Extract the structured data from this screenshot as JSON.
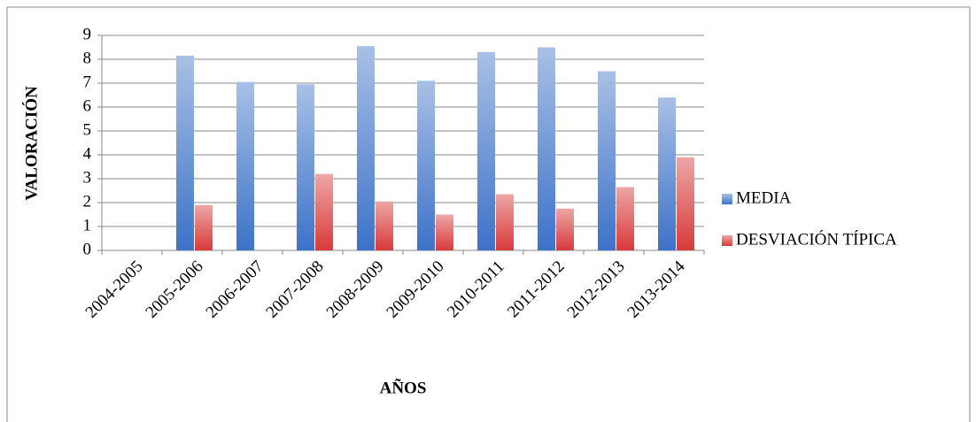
{
  "chart_data": {
    "type": "bar",
    "x_label": "AÑOS",
    "y_label": "VALORACIÓN",
    "categories": [
      "2004-2005",
      "2005-2006",
      "2006-2007",
      "2007-2008",
      "2008-2009",
      "2009-2010",
      "2010-2011",
      "2011-2012",
      "2012-2013",
      "2013-2014"
    ],
    "series": [
      {
        "name": "MEDIA",
        "color": "#3d72c8",
        "values": [
          null,
          8.15,
          7.05,
          6.95,
          8.55,
          7.1,
          8.3,
          8.5,
          7.5,
          6.4
        ]
      },
      {
        "name": "DESVIACIÓN TÍPICA",
        "color": "#d83a3a",
        "values": [
          null,
          1.9,
          null,
          3.2,
          2.05,
          1.5,
          2.35,
          1.75,
          2.65,
          3.9
        ]
      }
    ],
    "ylim": [
      0,
      9
    ],
    "yticks": [
      0,
      1,
      2,
      3,
      4,
      5,
      6,
      7,
      8,
      9
    ],
    "grid": true,
    "legend": "right"
  }
}
